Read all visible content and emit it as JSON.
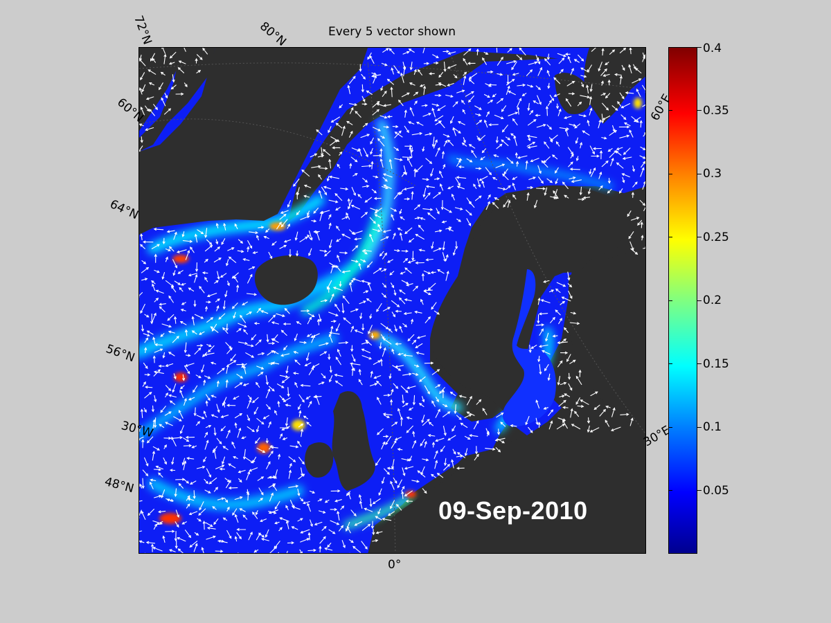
{
  "title": "Every 5 vector shown",
  "date": "09-Sep-2010",
  "labels": {
    "lat72": "72°N",
    "lon80": "80°N",
    "lat60": "60°N",
    "lat64": "64°N",
    "lat56": "56°N",
    "lat30w": "30°W",
    "lat48": "48°N",
    "lon0": "0°",
    "lon60e": "60°E",
    "lon30e": "30°E"
  },
  "colorbar": {
    "ticks": [
      "0.4",
      "0.35",
      "0.3",
      "0.25",
      "0.2",
      "0.15",
      "0.1",
      "0.05"
    ],
    "values": [
      0.4,
      0.35,
      0.3,
      0.25,
      0.2,
      0.15,
      0.1,
      0.05
    ],
    "min": 0.0,
    "max": 0.4,
    "colormap": "jet"
  },
  "colors": {
    "background": "#cccccc",
    "land": "#2e2e2e",
    "ocean_low": "#0a1aff",
    "vector": "#ffffff"
  }
}
